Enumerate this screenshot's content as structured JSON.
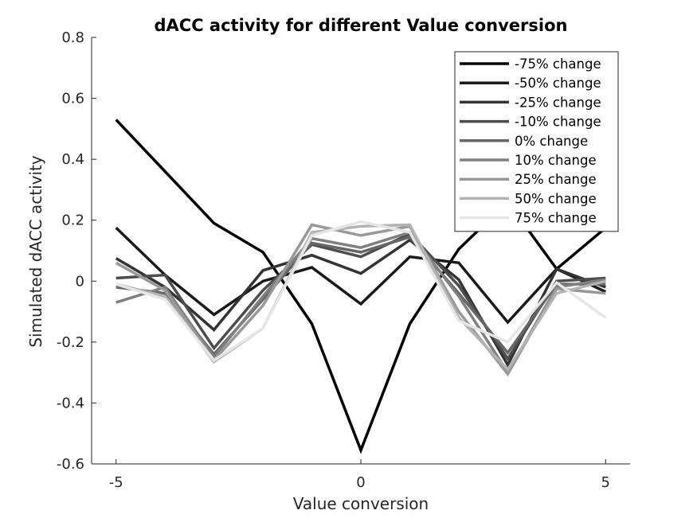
{
  "chart_data": {
    "type": "line",
    "title": "dACC activity for different Value conversion",
    "xlabel": "Value conversion",
    "ylabel": "Simulated dACC activity",
    "xlim": [
      -5.5,
      5.5
    ],
    "ylim": [
      -0.6,
      0.8
    ],
    "xticks": [
      -5,
      0,
      5
    ],
    "xtick_labels": [
      "-5",
      "0",
      "5"
    ],
    "yticks": [
      -0.6,
      -0.4,
      -0.2,
      0,
      0.2,
      0.4,
      0.6,
      0.8
    ],
    "ytick_labels": [
      "-0.6",
      "-0.4",
      "-0.2",
      "0",
      "0.2",
      "0.4",
      "0.6",
      "0.8"
    ],
    "grid": false,
    "legend_position": "top-right",
    "x": [
      -5,
      -4,
      -3,
      -2,
      -1,
      0,
      1,
      2,
      3,
      4,
      5
    ],
    "series": [
      {
        "name": "-75% change",
        "color": "#000000",
        "values": [
          0.53,
          0.36,
          0.19,
          0.095,
          -0.14,
          -0.555,
          -0.14,
          0.105,
          0.26,
          0.04,
          0.175
        ]
      },
      {
        "name": "-50% change",
        "color": "#1a1a1a",
        "values": [
          0.175,
          0.02,
          -0.11,
          0.0,
          0.045,
          -0.075,
          0.08,
          0.06,
          -0.135,
          0.04,
          -0.035
        ]
      },
      {
        "name": "-25% change",
        "color": "#333333",
        "values": [
          0.075,
          -0.02,
          -0.16,
          0.035,
          0.085,
          0.025,
          0.135,
          0.005,
          -0.275,
          0.04,
          -0.02
        ]
      },
      {
        "name": "-10% change",
        "color": "#4d4d4d",
        "values": [
          0.01,
          0.02,
          -0.22,
          -0.03,
          0.12,
          0.08,
          0.155,
          -0.015,
          -0.255,
          0.0,
          0.01
        ]
      },
      {
        "name": "0% change",
        "color": "#666666",
        "values": [
          -0.02,
          -0.04,
          -0.24,
          -0.06,
          0.125,
          0.095,
          0.145,
          -0.04,
          -0.235,
          -0.01,
          -0.01
        ]
      },
      {
        "name": "10% change",
        "color": "#808080",
        "values": [
          -0.07,
          -0.02,
          -0.25,
          -0.05,
          0.14,
          0.11,
          0.16,
          -0.05,
          -0.3,
          -0.02,
          0.005
        ]
      },
      {
        "name": "25% change",
        "color": "#999999",
        "values": [
          0.06,
          -0.03,
          -0.26,
          -0.08,
          0.185,
          0.15,
          0.18,
          -0.1,
          -0.305,
          -0.025,
          -0.04
        ]
      },
      {
        "name": "50% change",
        "color": "#b3b3b3",
        "values": [
          -0.01,
          -0.05,
          -0.265,
          -0.155,
          0.16,
          0.18,
          0.185,
          -0.12,
          -0.29,
          -0.04,
          0.0
        ]
      },
      {
        "name": "75% change",
        "color": "#e6e6e6",
        "values": [
          -0.01,
          -0.06,
          -0.26,
          -0.155,
          0.15,
          0.195,
          0.16,
          -0.13,
          -0.2,
          -0.005,
          -0.12
        ]
      }
    ]
  }
}
